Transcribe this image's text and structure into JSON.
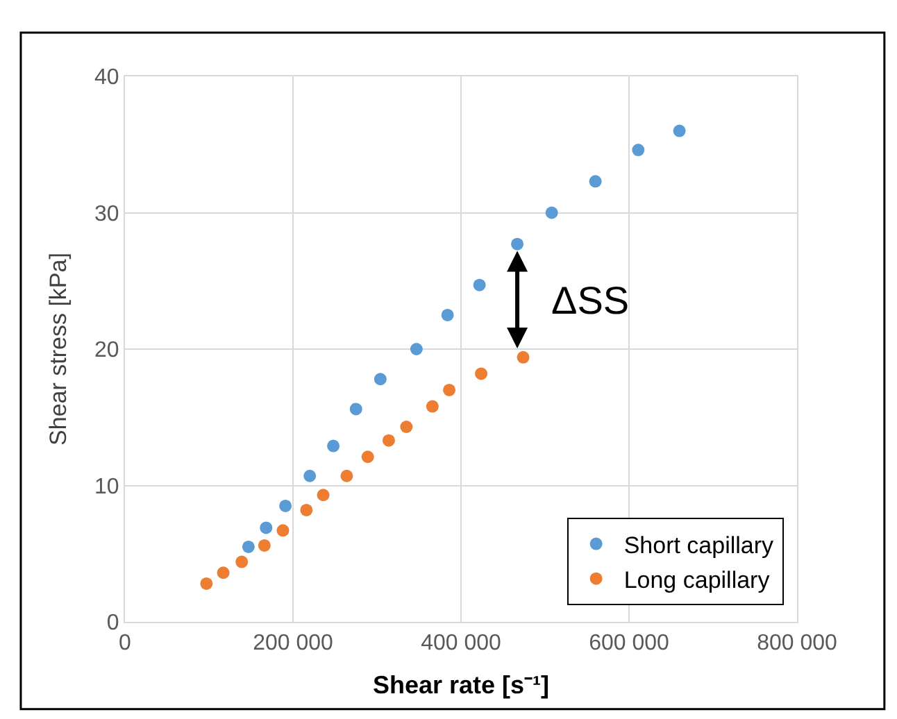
{
  "chart_data": {
    "type": "scatter",
    "xlabel": "Shear rate [s⁻¹]",
    "ylabel": "Shear stress [kPa]",
    "xlim": [
      0,
      800000
    ],
    "xticks": [
      {
        "value": 0,
        "label": "0"
      },
      {
        "value": 200000,
        "label": "200 000"
      },
      {
        "value": 400000,
        "label": "400 000"
      },
      {
        "value": 600000,
        "label": "600 000"
      },
      {
        "value": 800000,
        "label": "800 000"
      }
    ],
    "ylim": [
      0,
      40
    ],
    "yticks": [
      0,
      10,
      20,
      30,
      40
    ],
    "grid": true,
    "legend": "bottom right",
    "marker": "circle",
    "series": [
      {
        "name": "Short capillary",
        "color": "#5b9bd5",
        "x": [
          147000,
          168000,
          191000,
          220000,
          248000,
          275000,
          304000,
          347000,
          384000,
          422000,
          467000,
          508000,
          560000,
          611000,
          660000
        ],
        "values": [
          5.5,
          6.9,
          8.5,
          10.7,
          12.9,
          15.6,
          17.8,
          20.0,
          22.5,
          24.7,
          27.7,
          30.0,
          32.3,
          34.6,
          36.0
        ]
      },
      {
        "name": "Long capillary",
        "color": "#ed7d31",
        "x": [
          97000,
          117000,
          139000,
          166000,
          188000,
          216000,
          236000,
          264000,
          289000,
          314000,
          335000,
          366000,
          386000,
          424000,
          474000
        ],
        "values": [
          2.8,
          3.6,
          4.4,
          5.6,
          6.7,
          8.2,
          9.3,
          10.7,
          12.1,
          13.3,
          14.3,
          15.8,
          17.0,
          18.2,
          19.4
        ]
      }
    ],
    "annotations": [
      "ΔSS"
    ]
  }
}
